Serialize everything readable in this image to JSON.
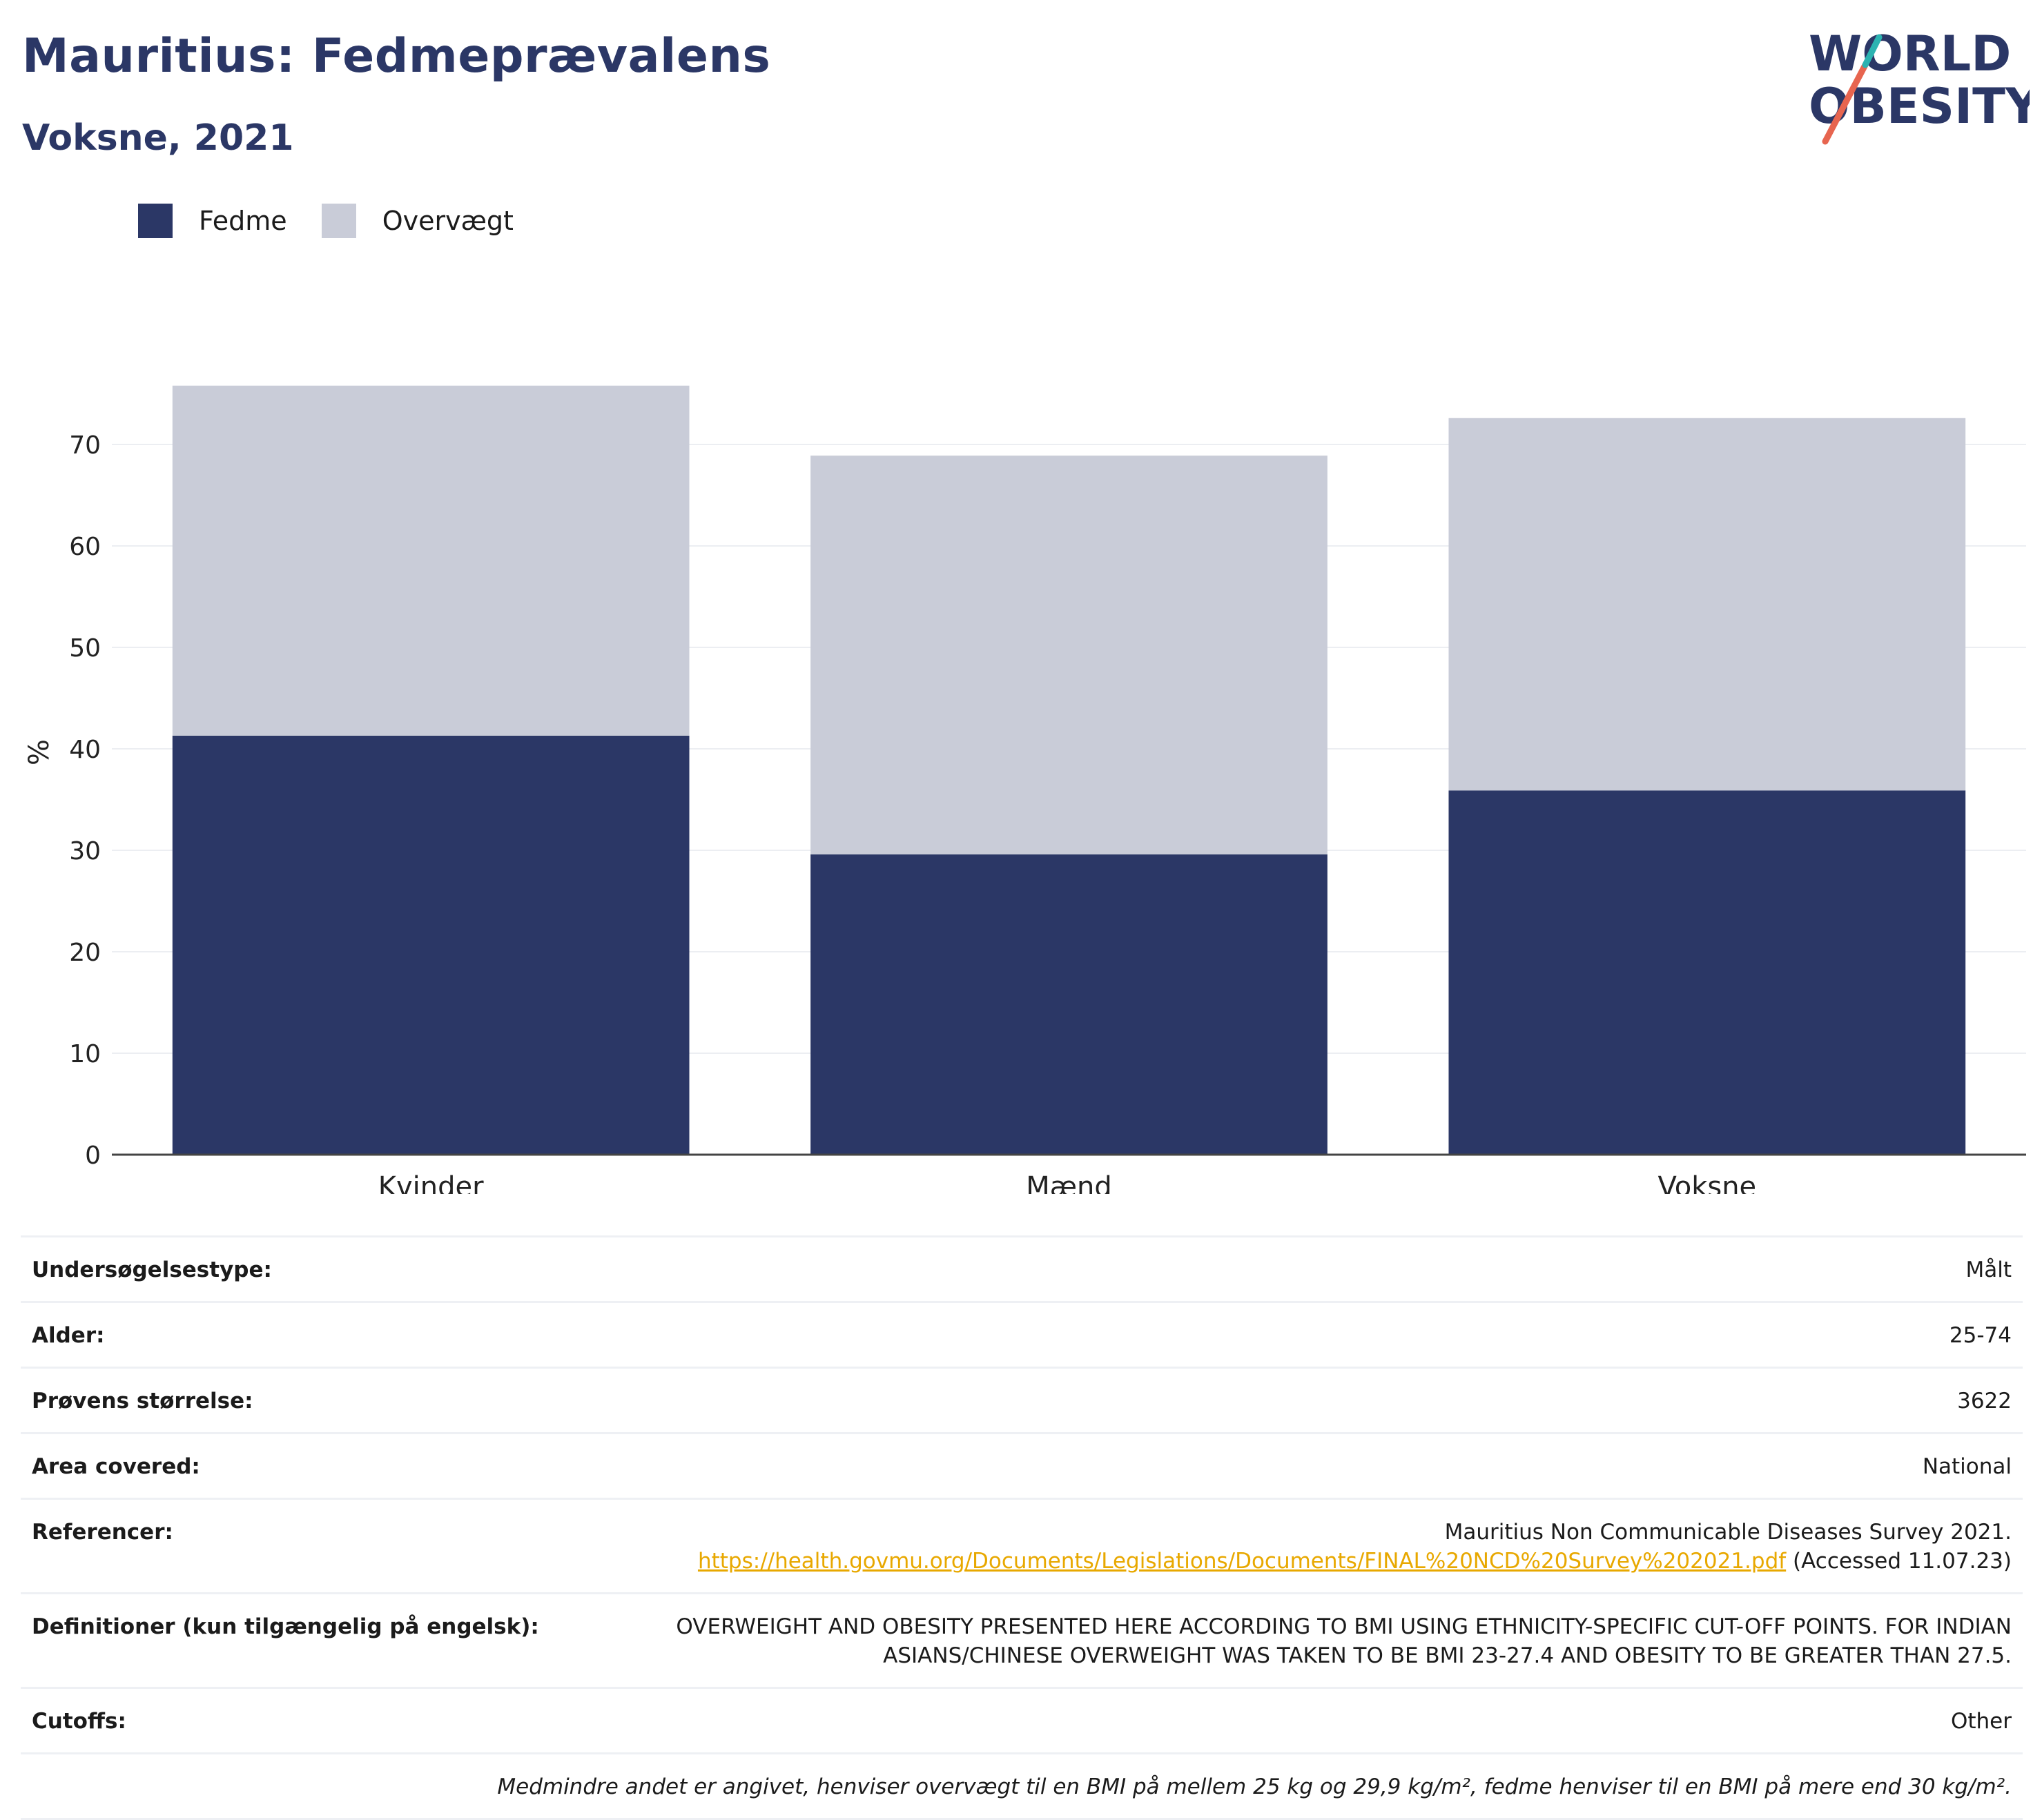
{
  "header": {
    "title": "Mauritius: Fedmeprævalens",
    "subtitle": "Voksne, 2021"
  },
  "logo": {
    "line1": "WORLD",
    "line2": "OBESITY",
    "accent": "#e7654f",
    "accent2": "#2cb3b1",
    "color": "#2b3766"
  },
  "legend": [
    {
      "label": "Fedme",
      "color": "#2b3766"
    },
    {
      "label": "Overvægt",
      "color": "#c9ccd8"
    }
  ],
  "chart_data": {
    "type": "bar",
    "stacked": true,
    "categories": [
      "Kvinder",
      "Mænd",
      "Voksne"
    ],
    "series": [
      {
        "name": "Fedme",
        "color": "#2b3766",
        "values": [
          41.3,
          29.6,
          35.9
        ]
      },
      {
        "name": "Overvægt",
        "color": "#c9ccd8",
        "values": [
          34.5,
          39.3,
          36.7
        ]
      }
    ],
    "ylabel": "%",
    "ylim": [
      0,
      75
    ],
    "yticks": [
      0,
      10,
      20,
      30,
      40,
      50,
      60,
      70
    ],
    "grid": true
  },
  "info": {
    "survey_type": {
      "label": "Undersøgelsestype:",
      "value": "Målt"
    },
    "age": {
      "label": "Alder:",
      "value": "25-74"
    },
    "sample": {
      "label": "Prøvens størrelse:",
      "value": "3622"
    },
    "area": {
      "label": "Area covered:",
      "value": "National"
    },
    "refs": {
      "label": "Referencer:",
      "line1": "Mauritius Non Communicable Diseases Survey 2021.",
      "link": "https://health.govmu.org/Documents/Legislations/Documents/FINAL%20NCD%20Survey%202021.pdf",
      "accessed": " (Accessed 11.07.23)"
    },
    "defs": {
      "label": "Definitioner (kun tilgængelig på engelsk):",
      "line1": "OVERWEIGHT AND OBESITY PRESENTED HERE ACCORDING TO BMI USING ETHNICITY-SPECIFIC CUT-OFF POINTS. FOR INDIAN",
      "line2": "ASIANS/CHINESE OVERWEIGHT WAS TAKEN TO BE BMI 23-27.4 AND OBESITY TO BE GREATER THAN 27.5."
    },
    "cutoffs": {
      "label": "Cutoffs:",
      "value": "Other"
    },
    "note": "Medmindre andet er angivet, henviser overvægt til en BMI på mellem 25 kg og 29,9 kg/m², fedme henviser til en BMI på mere end 30 kg/m²."
  }
}
